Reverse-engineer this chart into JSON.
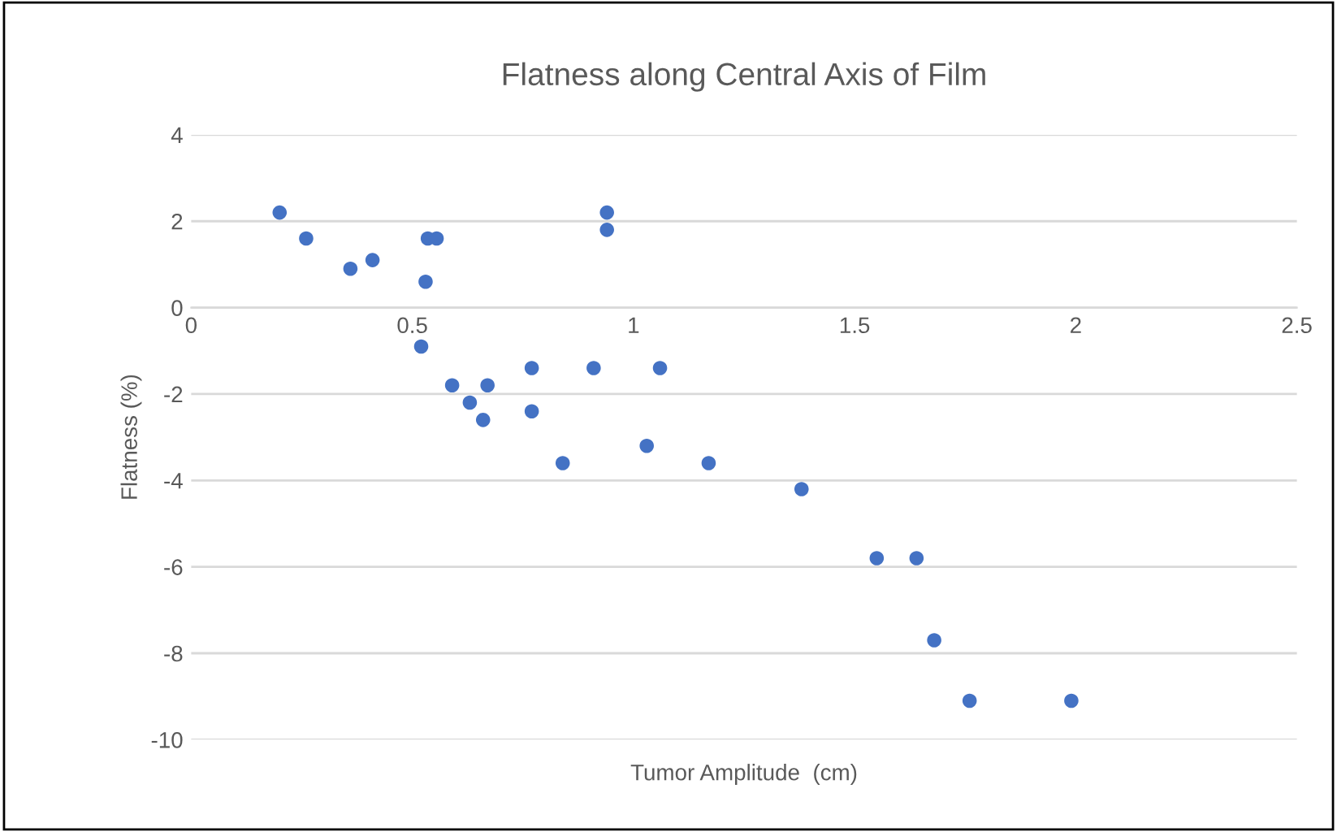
{
  "chart_data": {
    "type": "scatter",
    "title": "Flatness along Central Axis of Film",
    "xlabel": "Tumor Amplitude  (cm)",
    "ylabel": "Flatness (%)",
    "xlim": [
      0,
      2.5
    ],
    "xticks": [
      0,
      0.5,
      1,
      1.5,
      2,
      2.5
    ],
    "ylim": [
      -10,
      4
    ],
    "yticks": [
      -10,
      -8,
      -6,
      -4,
      -2,
      0,
      2,
      4
    ],
    "grid": "y",
    "marker": "circle",
    "legend": false,
    "series": [
      {
        "color": "#4472c4",
        "x": [
          0.2,
          0.26,
          0.36,
          0.41,
          0.53,
          0.535,
          0.555,
          0.52,
          0.59,
          0.63,
          0.66,
          0.67,
          0.77,
          0.77,
          0.84,
          0.91,
          0.94,
          0.94,
          1.03,
          1.06,
          1.17,
          1.38,
          1.55,
          1.64,
          1.68,
          1.76,
          1.99
        ],
        "values": [
          2.2,
          1.6,
          0.9,
          1.1,
          0.6,
          1.6,
          1.6,
          -0.9,
          -1.8,
          -2.2,
          -2.6,
          -1.8,
          -1.4,
          -2.4,
          -3.6,
          -1.4,
          2.2,
          1.8,
          -3.2,
          -1.4,
          -3.6,
          -4.2,
          -5.8,
          -5.8,
          -7.7,
          -9.1,
          -9.1
        ]
      }
    ]
  }
}
